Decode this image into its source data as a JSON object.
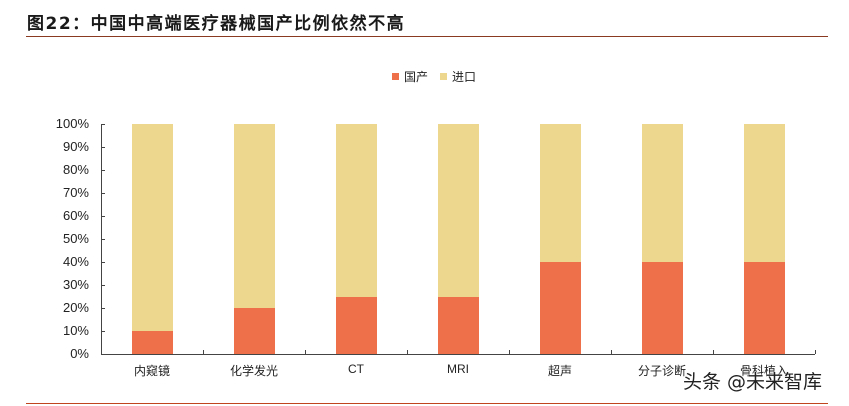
{
  "header": {
    "title": "图22：中国中高端医疗器械国产比例依然不高"
  },
  "legend": [
    {
      "label": "国产",
      "color": "#EE704A"
    },
    {
      "label": "进口",
      "color": "#EDD68D"
    }
  ],
  "watermark": "头条 @未来智库",
  "chart_data": {
    "type": "bar",
    "stacked": true,
    "title": "图22：中国中高端医疗器械国产比例依然不高",
    "xlabel": "",
    "ylabel": "",
    "ylim": [
      0,
      100
    ],
    "y_ticks": [
      "0%",
      "10%",
      "20%",
      "30%",
      "40%",
      "50%",
      "60%",
      "70%",
      "80%",
      "90%",
      "100%"
    ],
    "categories": [
      "内窥镜",
      "化学发光",
      "CT",
      "MRI",
      "超声",
      "分子诊断",
      "骨科植入"
    ],
    "series": [
      {
        "name": "国产",
        "color": "#EE704A",
        "values": [
          10,
          20,
          25,
          25,
          40,
          40,
          40
        ]
      },
      {
        "name": "进口",
        "color": "#EDD68D",
        "values": [
          90,
          80,
          75,
          75,
          60,
          60,
          60
        ]
      }
    ],
    "legend_position": "top",
    "grid": false
  }
}
